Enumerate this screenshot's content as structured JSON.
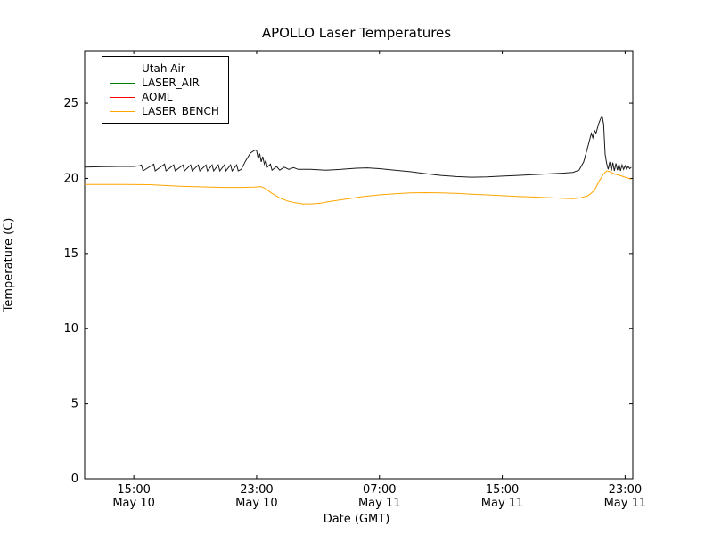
{
  "chart_data": {
    "type": "line",
    "title": "APOLLO Laser Temperatures",
    "xlabel": "Date (GMT)",
    "ylabel": "Temperature (C)",
    "x_unit": "hours since May 10 00:00 GMT",
    "xlim": [
      11.8,
      47.5
    ],
    "ylim": [
      0,
      28.5
    ],
    "grid": false,
    "legend_position": "upper left",
    "y_ticks": [
      0,
      5,
      10,
      15,
      20,
      25
    ],
    "x_ticks": [
      {
        "value": 15,
        "label": "15:00",
        "sublabel": "May 10"
      },
      {
        "value": 23,
        "label": "23:00",
        "sublabel": "May 10"
      },
      {
        "value": 31,
        "label": "07:00",
        "sublabel": "May 11"
      },
      {
        "value": 39,
        "label": "15:00",
        "sublabel": "May 11"
      },
      {
        "value": 47,
        "label": "23:00",
        "sublabel": "May 11"
      }
    ],
    "series": [
      {
        "name": "Utah Air",
        "color": "#1a1a1a",
        "points": [
          [
            11.8,
            20.75
          ],
          [
            13.0,
            20.78
          ],
          [
            14.0,
            20.8
          ],
          [
            15.0,
            20.8
          ],
          [
            15.4,
            20.85
          ],
          [
            15.5,
            20.9
          ],
          [
            15.6,
            20.5
          ],
          [
            16.3,
            20.95
          ],
          [
            16.4,
            20.5
          ],
          [
            17.0,
            20.95
          ],
          [
            17.1,
            20.5
          ],
          [
            17.6,
            20.9
          ],
          [
            17.7,
            20.5
          ],
          [
            18.2,
            20.9
          ],
          [
            18.3,
            20.5
          ],
          [
            18.7,
            20.9
          ],
          [
            18.8,
            20.5
          ],
          [
            19.2,
            20.9
          ],
          [
            19.3,
            20.5
          ],
          [
            19.7,
            20.9
          ],
          [
            19.8,
            20.5
          ],
          [
            20.1,
            20.9
          ],
          [
            20.2,
            20.5
          ],
          [
            20.5,
            20.9
          ],
          [
            20.6,
            20.5
          ],
          [
            20.9,
            20.9
          ],
          [
            21.0,
            20.5
          ],
          [
            21.3,
            20.9
          ],
          [
            21.4,
            20.5
          ],
          [
            21.7,
            20.9
          ],
          [
            21.8,
            20.5
          ],
          [
            22.0,
            20.6
          ],
          [
            22.3,
            21.2
          ],
          [
            22.6,
            21.7
          ],
          [
            22.9,
            21.9
          ],
          [
            23.0,
            21.85
          ],
          [
            23.1,
            21.3
          ],
          [
            23.2,
            21.65
          ],
          [
            23.3,
            21.1
          ],
          [
            23.4,
            21.45
          ],
          [
            23.5,
            20.95
          ],
          [
            23.6,
            21.2
          ],
          [
            23.7,
            20.75
          ],
          [
            23.9,
            20.95
          ],
          [
            24.0,
            20.55
          ],
          [
            24.3,
            20.8
          ],
          [
            24.5,
            20.55
          ],
          [
            24.8,
            20.75
          ],
          [
            25.1,
            20.6
          ],
          [
            25.4,
            20.72
          ],
          [
            25.7,
            20.6
          ],
          [
            26.5,
            20.6
          ],
          [
            27.5,
            20.55
          ],
          [
            28.5,
            20.6
          ],
          [
            29.5,
            20.68
          ],
          [
            30.2,
            20.7
          ],
          [
            31.0,
            20.65
          ],
          [
            32.0,
            20.55
          ],
          [
            33.0,
            20.45
          ],
          [
            34.0,
            20.32
          ],
          [
            35.0,
            20.2
          ],
          [
            36.0,
            20.12
          ],
          [
            37.0,
            20.08
          ],
          [
            38.0,
            20.1
          ],
          [
            39.0,
            20.15
          ],
          [
            40.0,
            20.2
          ],
          [
            41.0,
            20.25
          ],
          [
            42.0,
            20.3
          ],
          [
            43.0,
            20.35
          ],
          [
            43.6,
            20.4
          ],
          [
            44.0,
            20.55
          ],
          [
            44.3,
            21.1
          ],
          [
            44.6,
            22.2
          ],
          [
            44.8,
            23.0
          ],
          [
            44.9,
            22.7
          ],
          [
            45.0,
            23.2
          ],
          [
            45.1,
            23.0
          ],
          [
            45.3,
            23.7
          ],
          [
            45.5,
            24.2
          ],
          [
            45.6,
            23.6
          ],
          [
            45.7,
            21.6
          ],
          [
            45.8,
            21.0
          ],
          [
            45.9,
            20.6
          ],
          [
            46.0,
            21.1
          ],
          [
            46.1,
            20.5
          ],
          [
            46.2,
            21.05
          ],
          [
            46.3,
            20.5
          ],
          [
            46.4,
            21.0
          ],
          [
            46.5,
            20.55
          ],
          [
            46.6,
            20.95
          ],
          [
            46.7,
            20.5
          ],
          [
            46.8,
            20.9
          ],
          [
            46.9,
            20.6
          ],
          [
            47.0,
            20.85
          ],
          [
            47.1,
            20.6
          ],
          [
            47.2,
            20.8
          ],
          [
            47.3,
            20.65
          ],
          [
            47.4,
            20.75
          ]
        ]
      },
      {
        "name": "LASER_AIR",
        "color": "#008000",
        "points": []
      },
      {
        "name": "AOML",
        "color": "#ff0000",
        "points": []
      },
      {
        "name": "LASER_BENCH",
        "color": "#ffa500",
        "points": [
          [
            11.8,
            19.6
          ],
          [
            13.0,
            19.6
          ],
          [
            14.5,
            19.6
          ],
          [
            16.0,
            19.58
          ],
          [
            17.0,
            19.53
          ],
          [
            18.0,
            19.48
          ],
          [
            19.0,
            19.45
          ],
          [
            20.0,
            19.42
          ],
          [
            21.0,
            19.4
          ],
          [
            22.0,
            19.4
          ],
          [
            22.8,
            19.42
          ],
          [
            23.3,
            19.45
          ],
          [
            23.6,
            19.3
          ],
          [
            24.0,
            19.0
          ],
          [
            24.5,
            18.7
          ],
          [
            25.0,
            18.5
          ],
          [
            25.5,
            18.38
          ],
          [
            26.0,
            18.3
          ],
          [
            26.6,
            18.3
          ],
          [
            27.2,
            18.36
          ],
          [
            28.0,
            18.5
          ],
          [
            29.0,
            18.65
          ],
          [
            30.0,
            18.8
          ],
          [
            31.0,
            18.9
          ],
          [
            32.0,
            18.98
          ],
          [
            33.0,
            19.03
          ],
          [
            34.0,
            19.05
          ],
          [
            35.0,
            19.03
          ],
          [
            36.0,
            19.0
          ],
          [
            37.0,
            18.95
          ],
          [
            38.0,
            18.9
          ],
          [
            39.0,
            18.85
          ],
          [
            40.0,
            18.8
          ],
          [
            41.0,
            18.76
          ],
          [
            42.0,
            18.72
          ],
          [
            43.0,
            18.67
          ],
          [
            43.6,
            18.65
          ],
          [
            44.1,
            18.7
          ],
          [
            44.6,
            18.85
          ],
          [
            45.0,
            19.2
          ],
          [
            45.3,
            19.8
          ],
          [
            45.6,
            20.3
          ],
          [
            45.8,
            20.5
          ],
          [
            46.0,
            20.45
          ],
          [
            46.3,
            20.3
          ],
          [
            46.7,
            20.18
          ],
          [
            47.0,
            20.08
          ],
          [
            47.4,
            19.95
          ]
        ]
      }
    ]
  }
}
